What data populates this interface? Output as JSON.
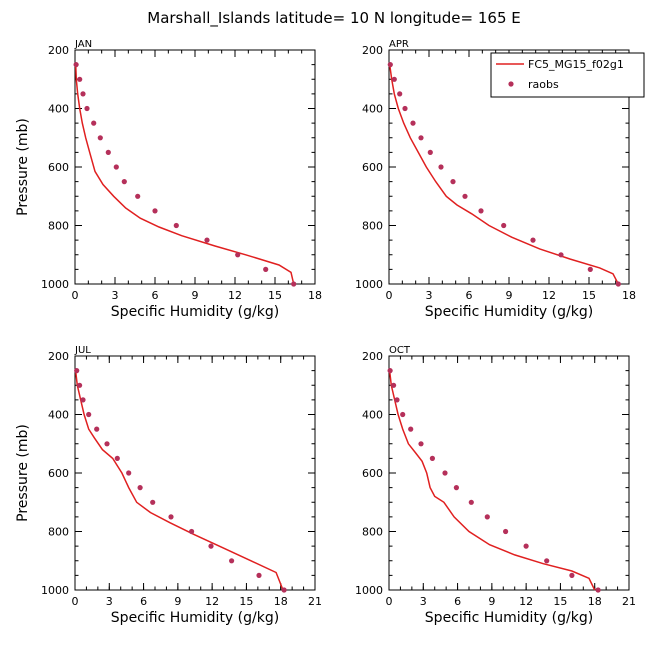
{
  "figure": {
    "title": "Marshall_Islands  latitude= 10 N longitude= 165 E",
    "colors": {
      "model": "#e02020",
      "obs": "#b5305a",
      "axes": "#000000"
    },
    "legend": {
      "placement": "top-right of APR panel",
      "entries": [
        "FC5_MG15_f02g1",
        "raobs"
      ]
    }
  },
  "chart_data": [
    {
      "type": "line",
      "panel_label": "JAN",
      "xlabel": "Specific Humidity (g/kg)",
      "ylabel": "Pressure (mb)",
      "xlim": [
        0,
        18
      ],
      "xticks": [
        "0",
        "3",
        "6",
        "9",
        "12",
        "15",
        "18"
      ],
      "ylim": [
        1000,
        200
      ],
      "yticks": [
        "200",
        "400",
        "600",
        "800",
        "1000"
      ],
      "y_inverted": true,
      "series": [
        {
          "name": "FC5_MG15_f02g1",
          "style": "line",
          "x": [
            0.05,
            0.1,
            0.2,
            0.35,
            0.55,
            0.8,
            1.1,
            1.5,
            2.1,
            2.9,
            3.8,
            4.9,
            6.3,
            8.0,
            10.5,
            12.8,
            15.3,
            16.2,
            16.4
          ],
          "y": [
            250,
            300,
            350,
            400,
            450,
            500,
            550,
            615,
            660,
            700,
            740,
            775,
            805,
            835,
            870,
            900,
            935,
            960,
            1000
          ]
        },
        {
          "name": "raobs",
          "style": "markers",
          "x": [
            0.08,
            0.35,
            0.6,
            0.9,
            1.4,
            1.9,
            2.5,
            3.1,
            3.7,
            4.7,
            6.0,
            7.6,
            9.9,
            12.2,
            14.3,
            16.4
          ],
          "y": [
            250,
            300,
            350,
            400,
            450,
            500,
            550,
            600,
            650,
            700,
            750,
            800,
            850,
            900,
            950,
            1000
          ]
        }
      ]
    },
    {
      "type": "line",
      "panel_label": "APR",
      "xlabel": "Specific Humidity (g/kg)",
      "ylabel": "",
      "xlim": [
        0,
        18
      ],
      "xticks": [
        "0",
        "3",
        "6",
        "9",
        "12",
        "15",
        "18"
      ],
      "ylim": [
        1000,
        200
      ],
      "yticks": [
        "200",
        "400",
        "600",
        "800",
        "1000"
      ],
      "y_inverted": true,
      "series": [
        {
          "name": "FC5_MG15_f02g1",
          "style": "line",
          "x": [
            0.05,
            0.2,
            0.4,
            0.7,
            1.1,
            1.6,
            2.2,
            2.8,
            3.5,
            4.3,
            5.1,
            6.2,
            7.5,
            9.2,
            11.3,
            13.6,
            15.8,
            16.8,
            17.2
          ],
          "y": [
            250,
            300,
            350,
            400,
            450,
            500,
            550,
            600,
            650,
            700,
            730,
            760,
            800,
            840,
            880,
            915,
            945,
            965,
            1000
          ]
        },
        {
          "name": "raobs",
          "style": "markers",
          "x": [
            0.1,
            0.4,
            0.8,
            1.2,
            1.8,
            2.4,
            3.1,
            3.9,
            4.8,
            5.7,
            6.9,
            8.6,
            10.8,
            12.9,
            15.1,
            17.2
          ],
          "y": [
            250,
            300,
            350,
            400,
            450,
            500,
            550,
            600,
            650,
            700,
            750,
            800,
            850,
            900,
            950,
            1000
          ]
        }
      ]
    },
    {
      "type": "line",
      "panel_label": "JUL",
      "xlabel": "Specific Humidity (g/kg)",
      "ylabel": "Pressure (mb)",
      "xlim": [
        0,
        21
      ],
      "xticks": [
        "0",
        "3",
        "6",
        "9",
        "12",
        "15",
        "18",
        "21"
      ],
      "ylim": [
        1000,
        200
      ],
      "yticks": [
        "200",
        "400",
        "600",
        "800",
        "1000"
      ],
      "y_inverted": true,
      "series": [
        {
          "name": "FC5_MG15_f02g1",
          "style": "line",
          "x": [
            0.05,
            0.2,
            0.5,
            0.8,
            1.2,
            1.7,
            2.4,
            3.3,
            4.1,
            4.7,
            5.4,
            6.6,
            8.3,
            10.4,
            12.9,
            15.4,
            17.6,
            18.2
          ],
          "y": [
            250,
            300,
            350,
            400,
            450,
            480,
            520,
            550,
            600,
            650,
            700,
            735,
            770,
            810,
            855,
            900,
            940,
            1000
          ]
        },
        {
          "name": "raobs",
          "style": "markers",
          "x": [
            0.15,
            0.4,
            0.7,
            1.2,
            1.9,
            2.8,
            3.7,
            4.7,
            5.7,
            6.8,
            8.4,
            10.2,
            11.9,
            13.7,
            16.1,
            18.3
          ],
          "y": [
            250,
            300,
            350,
            400,
            450,
            500,
            550,
            600,
            650,
            700,
            750,
            800,
            850,
            900,
            950,
            1000
          ]
        }
      ]
    },
    {
      "type": "line",
      "panel_label": "OCT",
      "xlabel": "Specific Humidity (g/kg)",
      "ylabel": "",
      "xlim": [
        0,
        21
      ],
      "xticks": [
        "0",
        "3",
        "6",
        "9",
        "12",
        "15",
        "18",
        "21"
      ],
      "ylim": [
        1000,
        200
      ],
      "yticks": [
        "200",
        "400",
        "600",
        "800",
        "1000"
      ],
      "y_inverted": true,
      "series": [
        {
          "name": "FC5_MG15_f02g1",
          "style": "line",
          "x": [
            0.05,
            0.2,
            0.5,
            0.8,
            1.2,
            1.7,
            2.3,
            2.9,
            3.3,
            3.6,
            4.0,
            4.8,
            5.7,
            7.0,
            8.8,
            11.0,
            13.5,
            16.0,
            17.5,
            18.0
          ],
          "y": [
            250,
            300,
            350,
            400,
            450,
            500,
            530,
            560,
            600,
            650,
            680,
            700,
            750,
            800,
            845,
            880,
            910,
            935,
            960,
            1000
          ]
        },
        {
          "name": "raobs",
          "style": "markers",
          "x": [
            0.1,
            0.4,
            0.7,
            1.2,
            1.9,
            2.8,
            3.8,
            4.9,
            5.9,
            7.2,
            8.6,
            10.2,
            12.0,
            13.8,
            16.0,
            18.3
          ],
          "y": [
            250,
            300,
            350,
            400,
            450,
            500,
            550,
            600,
            650,
            700,
            750,
            800,
            850,
            900,
            950,
            1000
          ]
        }
      ]
    }
  ]
}
